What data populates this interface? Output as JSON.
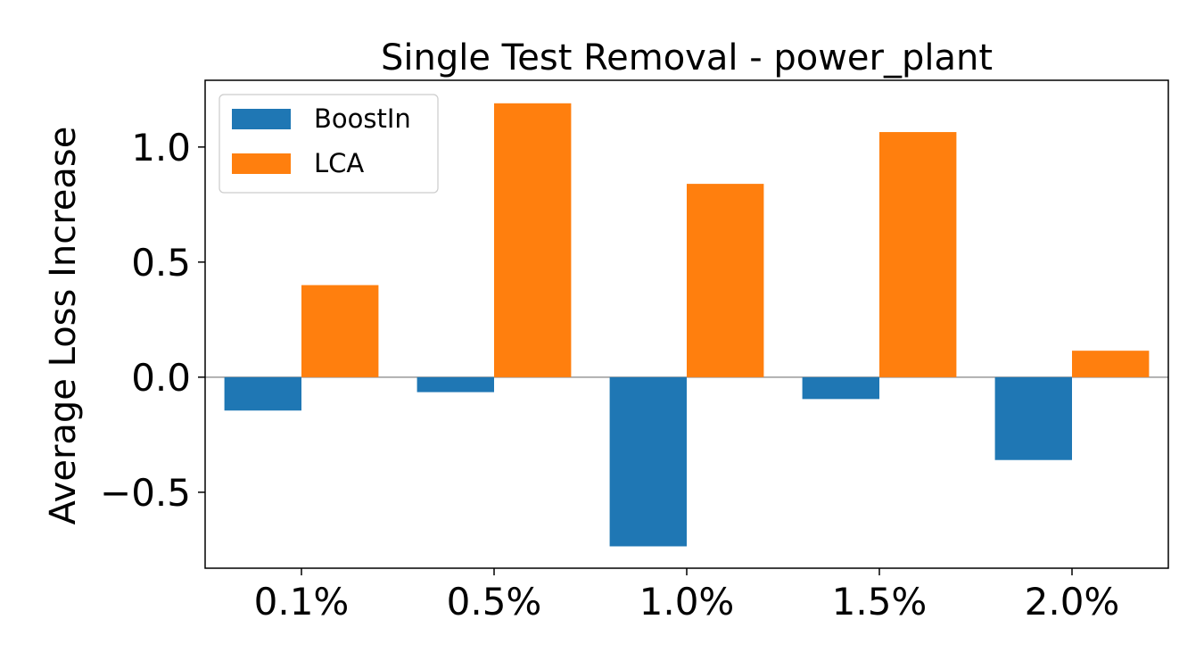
{
  "chart_data": {
    "type": "bar",
    "title": "Single Test Removal - power_plant",
    "xlabel": "",
    "ylabel": "Average Loss Increase",
    "categories": [
      "0.1%",
      "0.5%",
      "1.0%",
      "1.5%",
      "2.0%"
    ],
    "series": [
      {
        "name": "BoostIn",
        "color": "#1f77b4",
        "values": [
          -0.145,
          -0.065,
          -0.735,
          -0.095,
          -0.36
        ]
      },
      {
        "name": "LCA",
        "color": "#ff7f0e",
        "values": [
          0.4,
          1.19,
          0.84,
          1.065,
          0.115
        ]
      }
    ],
    "ylim": [
      -0.83,
      1.29
    ],
    "yticks": [
      -0.5,
      0.0,
      0.5,
      1.0
    ],
    "ytick_labels": [
      "−0.5",
      "0.0",
      "0.5",
      "1.0"
    ],
    "legend": "upper-left",
    "grid": false
  }
}
